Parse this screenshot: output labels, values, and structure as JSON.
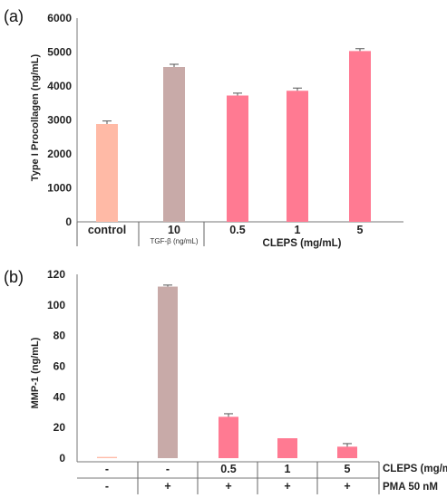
{
  "panels": {
    "a": "(a)",
    "b": "(b)"
  },
  "chart_data": [
    {
      "type": "bar",
      "ylabel": "Type I Procollagen (ng/mL)",
      "ylim": [
        0,
        6000
      ],
      "yticks": [
        "0",
        "1000",
        "2000",
        "3000",
        "4000",
        "5000",
        "6000"
      ],
      "categories": [
        "control",
        "10",
        "0.5",
        "1",
        "5"
      ],
      "category_sublabels": [
        "",
        "TGF-β (ng/mL)",
        "",
        "",
        ""
      ],
      "values": [
        2880,
        4560,
        3720,
        3860,
        5030
      ],
      "errors": [
        90,
        80,
        70,
        80,
        70
      ],
      "colors": [
        "#ffbaa6",
        "#c8aaa8",
        "#ff7a92",
        "#ff7a92",
        "#ff7a92"
      ],
      "group_label": "CLEPS (mg/mL)"
    },
    {
      "type": "bar",
      "ylabel": "MMP-1 (ng/mL)",
      "ylim": [
        0,
        120
      ],
      "yticks": [
        "0",
        "20",
        "40",
        "60",
        "80",
        "100",
        "120"
      ],
      "values": [
        0.8,
        112,
        27,
        13,
        7.5
      ],
      "errors": [
        0,
        1,
        2,
        0,
        2
      ],
      "colors": [
        "#ffbaa6",
        "#c8aaa8",
        "#ff7a92",
        "#ff7a92",
        "#ff7a92"
      ],
      "rows": [
        {
          "label": "CLEPS (mg/mL)",
          "cells": [
            "-",
            "-",
            "0.5",
            "1",
            "5"
          ]
        },
        {
          "label": "PMA 50 nM",
          "cells": [
            "-",
            "+",
            "+",
            "+",
            "+"
          ]
        }
      ]
    }
  ]
}
